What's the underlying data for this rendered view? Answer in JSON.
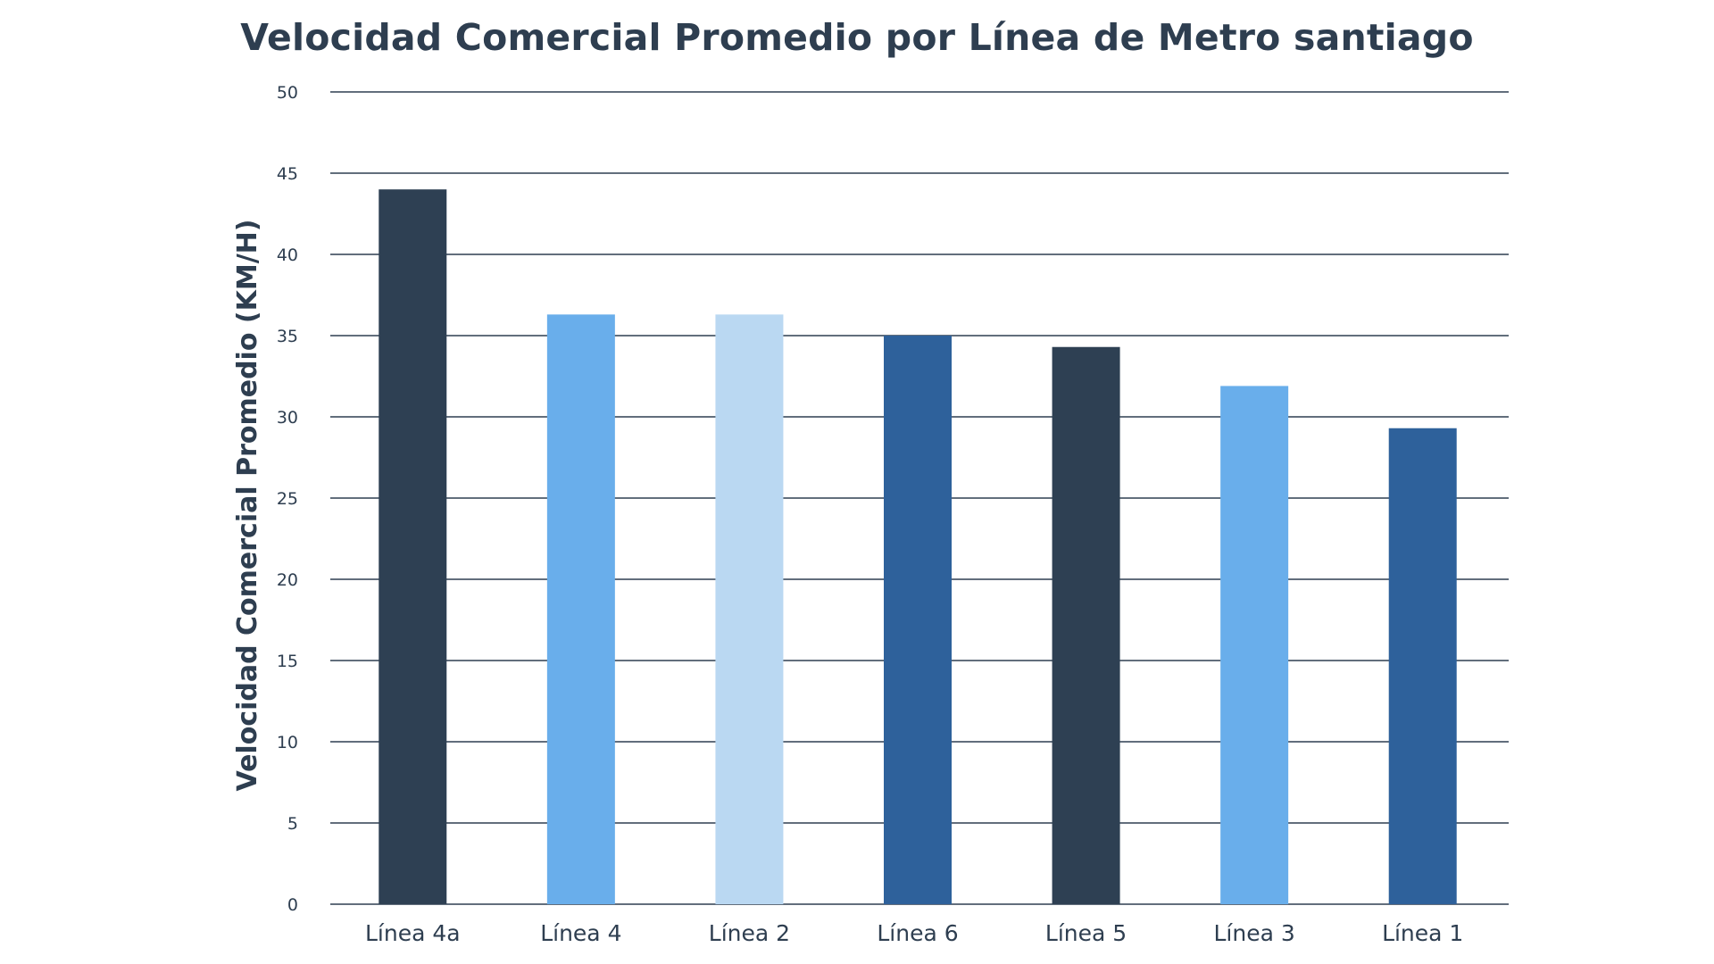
{
  "chart_data": {
    "type": "bar",
    "title": "Velocidad Comercial Promedio por Línea de Metro santiago",
    "xlabel": "",
    "ylabel": "Velocidad Comercial Promedio (KM/H)",
    "categories": [
      "Línea 4a",
      "Línea 4",
      "Línea 2",
      "Línea 6",
      "Línea 5",
      "Línea 3",
      "Línea 1"
    ],
    "values": [
      44.0,
      36.3,
      36.3,
      35.0,
      34.3,
      31.9,
      29.3
    ],
    "colors": [
      "#2e4053",
      "#69aeeb",
      "#bad8f2",
      "#2e619b",
      "#2e4053",
      "#69aeeb",
      "#2e619b"
    ],
    "ylim": [
      0,
      50
    ],
    "yticks": [
      0,
      5,
      10,
      15,
      20,
      25,
      30,
      35,
      40,
      45,
      50
    ],
    "grid": true,
    "legend": "none"
  }
}
